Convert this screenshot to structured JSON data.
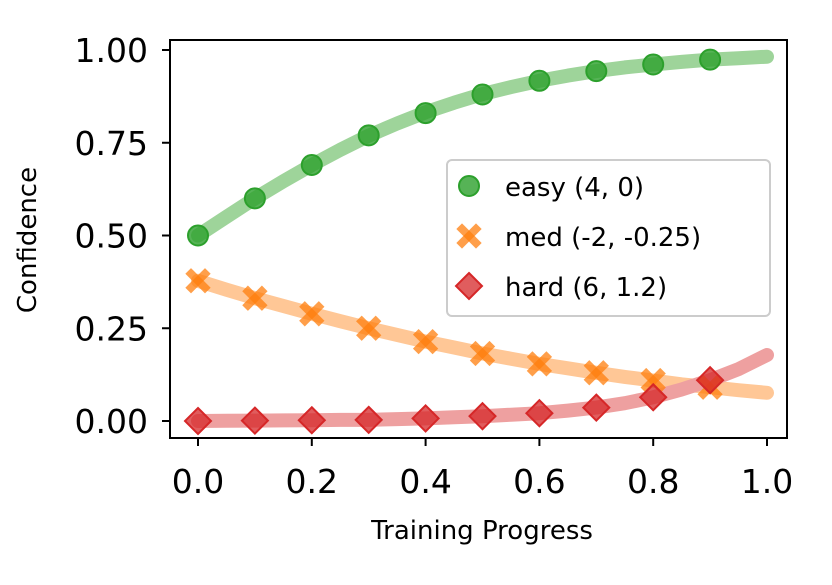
{
  "chart_data": {
    "type": "line",
    "title": "",
    "xlabel": "Training Progress",
    "ylabel": "Confidence",
    "xlim": [
      -0.05,
      1.04
    ],
    "ylim": [
      -0.05,
      1.03
    ],
    "grid": false,
    "legend_position": "center-right",
    "x_ticks": [
      "0.0",
      "0.2",
      "0.4",
      "0.6",
      "0.8",
      "1.0"
    ],
    "x_tick_values": [
      0,
      0.2,
      0.4,
      0.6,
      0.8,
      1.0
    ],
    "y_ticks": [
      "0.00",
      "0.25",
      "0.50",
      "0.75",
      "1.00"
    ],
    "y_tick_values": [
      0,
      0.25,
      0.5,
      0.75,
      1.0
    ],
    "marker_x": [
      0,
      0.1,
      0.2,
      0.3,
      0.4,
      0.5,
      0.6,
      0.7,
      0.8,
      0.9
    ],
    "curve_x": [
      0,
      0.05,
      0.1,
      0.15,
      0.2,
      0.25,
      0.3,
      0.35,
      0.4,
      0.45,
      0.5,
      0.55,
      0.6,
      0.65,
      0.7,
      0.75,
      0.8,
      0.85,
      0.9,
      0.95,
      1.0
    ],
    "series": [
      {
        "name": "easy (4, 0)",
        "marker": "circle",
        "color": "#2ca02c",
        "curve_color": "#9ed49a",
        "marker_values": [
          0.5,
          0.6,
          0.69,
          0.77,
          0.83,
          0.88,
          0.917,
          0.943,
          0.961,
          0.974
        ],
        "curve_values": [
          0.5,
          0.55,
          0.6,
          0.646,
          0.69,
          0.731,
          0.769,
          0.802,
          0.832,
          0.858,
          0.881,
          0.9,
          0.917,
          0.931,
          0.943,
          0.953,
          0.961,
          0.968,
          0.974,
          0.978,
          0.982
        ]
      },
      {
        "name": "med (-2, -0.25)",
        "marker": "x",
        "color": "#ff7f0e",
        "curve_color": "#ffc796",
        "marker_values": [
          0.378,
          0.331,
          0.289,
          0.25,
          0.214,
          0.182,
          0.154,
          0.13,
          0.109,
          0.091
        ],
        "curve_values": [
          0.378,
          0.354,
          0.331,
          0.31,
          0.289,
          0.269,
          0.25,
          0.232,
          0.214,
          0.198,
          0.182,
          0.168,
          0.154,
          0.142,
          0.13,
          0.119,
          0.109,
          0.099,
          0.091,
          0.083,
          0.076
        ]
      },
      {
        "name": "hard (6, 1.2)",
        "marker": "diamond",
        "color": "#d62728",
        "curve_color": "#eea0a0",
        "marker_values": [
          0.0,
          0.001,
          0.002,
          0.003,
          0.007,
          0.013,
          0.021,
          0.036,
          0.064,
          0.11
        ],
        "curve_values": [
          0.0,
          0.0005,
          0.001,
          0.0015,
          0.002,
          0.003,
          0.003,
          0.005,
          0.007,
          0.01,
          0.013,
          0.017,
          0.021,
          0.028,
          0.036,
          0.048,
          0.064,
          0.085,
          0.11,
          0.14,
          0.178
        ]
      }
    ]
  }
}
